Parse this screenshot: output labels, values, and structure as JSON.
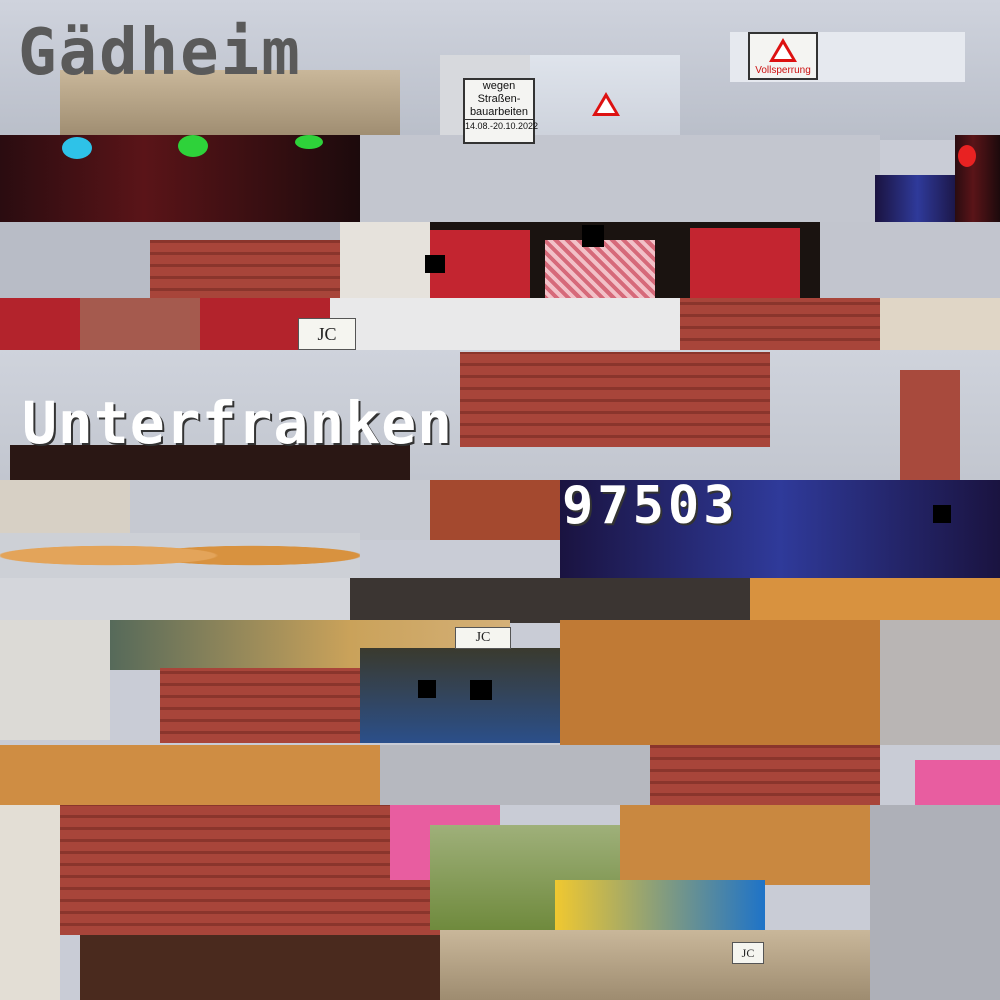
{
  "collage": {
    "title": "Gädheim",
    "region": "Unterfranken",
    "postal_code": "97503"
  },
  "signs": {
    "closure_label": "Vollsperrung",
    "roadworks_lines": [
      "wegen",
      "Straßen-",
      "bauarbeiten"
    ],
    "roadworks_dates": "14.08.-20.10.2022"
  },
  "logos": {
    "photographer_mark": "JC"
  },
  "colors": {
    "title_text": "#5a5a5a",
    "region_text": "#ffffff",
    "postal_text": "#ffffff",
    "roof_red": "#a8453a",
    "stage_red": "#c32530",
    "pretzel_gold": "#d8923f"
  }
}
